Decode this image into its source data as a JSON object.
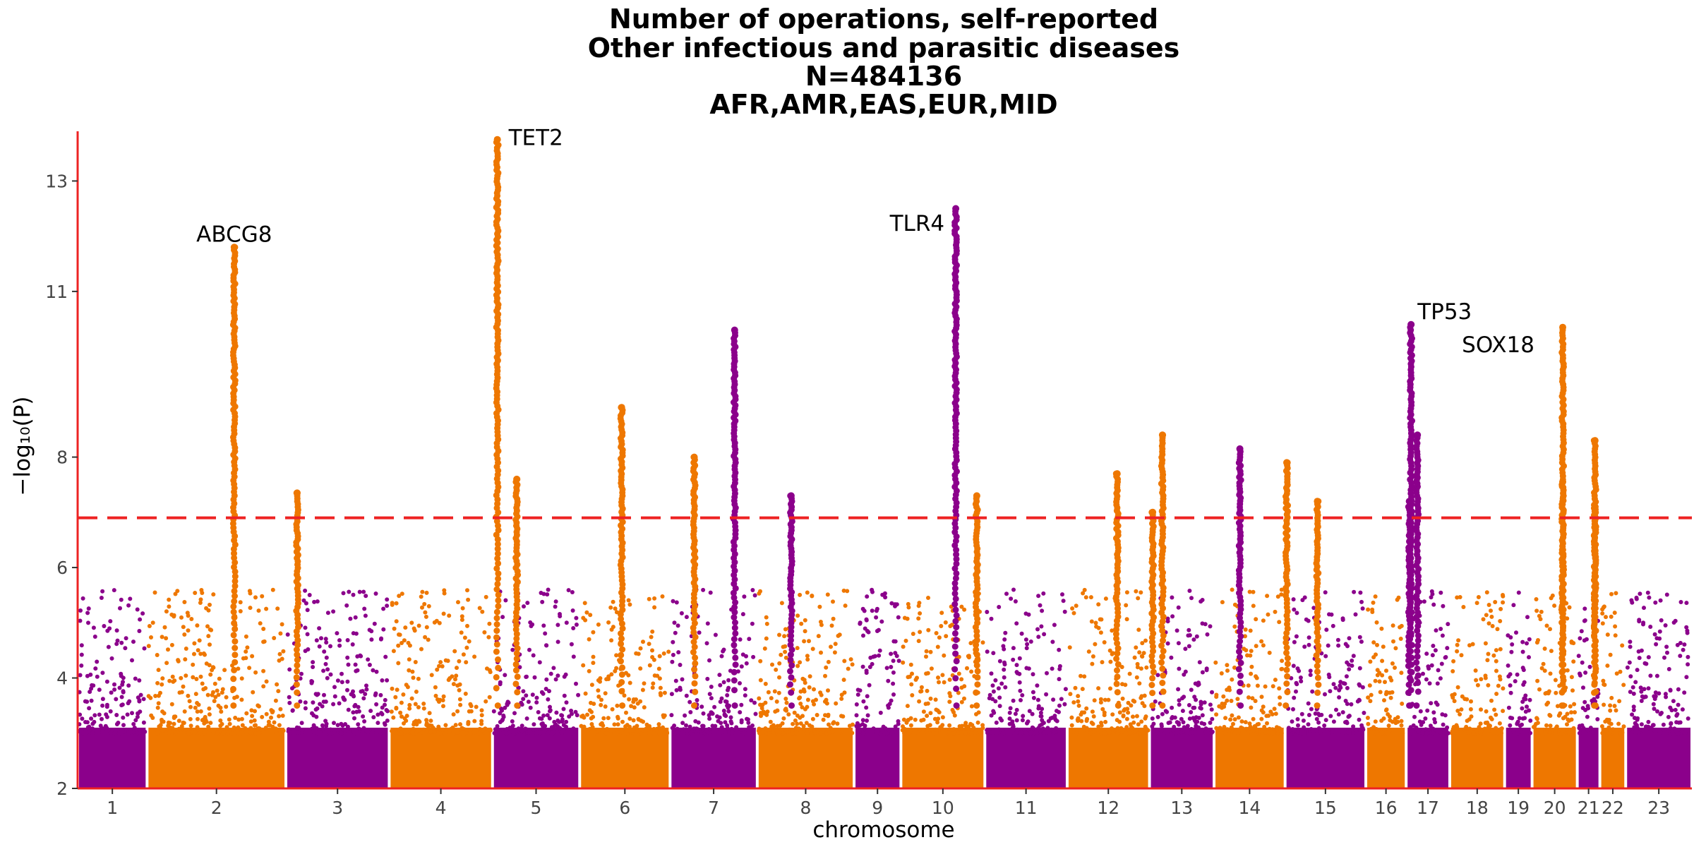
{
  "chart_data": {
    "type": "scatter",
    "subtype": "manhattan",
    "title_lines": [
      "Number of operations, self-reported",
      "Other infectious and parasitic diseases",
      "N=484136",
      "AFR,AMR,EAS,EUR,MID"
    ],
    "xlabel": "chromosome",
    "ylabel": "−log₁₀(P)",
    "ylim": [
      2,
      13.9
    ],
    "y_ticks": [
      2,
      4,
      6,
      8,
      11,
      13
    ],
    "x_range": [
      0,
      100
    ],
    "significance_threshold": 6.9,
    "threshold_color": "#ee2222",
    "axis_color": "#ee2222",
    "colors": {
      "odd": "#8b008b",
      "even": "#ee7700"
    },
    "chromosomes": [
      {
        "label": "1",
        "start": 0.0,
        "end": 4.3
      },
      {
        "label": "2",
        "start": 4.3,
        "end": 12.9
      },
      {
        "label": "3",
        "start": 12.9,
        "end": 19.3
      },
      {
        "label": "4",
        "start": 19.3,
        "end": 25.7
      },
      {
        "label": "5",
        "start": 25.7,
        "end": 31.1
      },
      {
        "label": "6",
        "start": 31.1,
        "end": 36.7
      },
      {
        "label": "7",
        "start": 36.7,
        "end": 42.1
      },
      {
        "label": "8",
        "start": 42.1,
        "end": 48.1
      },
      {
        "label": "9",
        "start": 48.1,
        "end": 51.0
      },
      {
        "label": "10",
        "start": 51.0,
        "end": 56.2
      },
      {
        "label": "11",
        "start": 56.2,
        "end": 61.3
      },
      {
        "label": "12",
        "start": 61.3,
        "end": 66.4
      },
      {
        "label": "13",
        "start": 66.4,
        "end": 70.4
      },
      {
        "label": "14",
        "start": 70.4,
        "end": 74.8
      },
      {
        "label": "15",
        "start": 74.8,
        "end": 79.8
      },
      {
        "label": "16",
        "start": 79.8,
        "end": 82.3
      },
      {
        "label": "17",
        "start": 82.3,
        "end": 85.0
      },
      {
        "label": "18",
        "start": 85.0,
        "end": 88.4
      },
      {
        "label": "19",
        "start": 88.4,
        "end": 90.1
      },
      {
        "label": "20",
        "start": 90.1,
        "end": 92.9
      },
      {
        "label": "21",
        "start": 92.9,
        "end": 94.3
      },
      {
        "label": "22",
        "start": 94.3,
        "end": 95.9
      },
      {
        "label": "23",
        "start": 95.9,
        "end": 100.0
      }
    ],
    "peaks": [
      {
        "x": 9.7,
        "y": 11.8,
        "chr": 2,
        "gene": "ABCG8"
      },
      {
        "x": 13.6,
        "y": 7.35,
        "chr": 2
      },
      {
        "x": 26.0,
        "y": 13.75,
        "chr": 4,
        "gene": "TET2"
      },
      {
        "x": 27.2,
        "y": 7.6,
        "chr": 4
      },
      {
        "x": 33.7,
        "y": 8.9,
        "chr": 6
      },
      {
        "x": 38.2,
        "y": 8.0,
        "chr": 6
      },
      {
        "x": 40.7,
        "y": 10.3,
        "chr": 7
      },
      {
        "x": 44.2,
        "y": 7.3,
        "chr": 7
      },
      {
        "x": 54.4,
        "y": 12.5,
        "chr": 9,
        "gene": "TLR4"
      },
      {
        "x": 55.7,
        "y": 7.3,
        "chr": 10
      },
      {
        "x": 64.4,
        "y": 7.7,
        "chr": 12
      },
      {
        "x": 66.6,
        "y": 7.0,
        "chr": 12
      },
      {
        "x": 67.2,
        "y": 8.4,
        "chr": 12
      },
      {
        "x": 72.0,
        "y": 8.15,
        "chr": 13
      },
      {
        "x": 74.9,
        "y": 7.9,
        "chr": 14
      },
      {
        "x": 76.8,
        "y": 7.2,
        "chr": 14
      },
      {
        "x": 82.6,
        "y": 10.4,
        "chr": 17,
        "gene": "TP53"
      },
      {
        "x": 83.0,
        "y": 8.4,
        "chr": 17
      },
      {
        "x": 82.5,
        "y": 7.2,
        "chr": 17
      },
      {
        "x": 92.0,
        "y": 10.35,
        "chr": 20,
        "gene": "SOX18"
      },
      {
        "x": 92.0,
        "y": 7.55,
        "chr": 20
      },
      {
        "x": 94.0,
        "y": 8.3,
        "chr": 22
      },
      {
        "x": 94.0,
        "y": 7.1,
        "chr": 22
      }
    ],
    "gene_labels": [
      {
        "text": "ABCG8",
        "x": 9.7,
        "y": 11.9,
        "anchor": "middle"
      },
      {
        "text": "TET2",
        "x": 26.7,
        "y": 13.65,
        "anchor": "start"
      },
      {
        "text": "TLR4",
        "x": 53.7,
        "y": 12.1,
        "anchor": "end"
      },
      {
        "text": "TP53",
        "x": 83.0,
        "y": 10.5,
        "anchor": "start"
      },
      {
        "text": "SOX18",
        "x": 88.0,
        "y": 9.9,
        "anchor": "middle"
      }
    ],
    "grid": false
  }
}
